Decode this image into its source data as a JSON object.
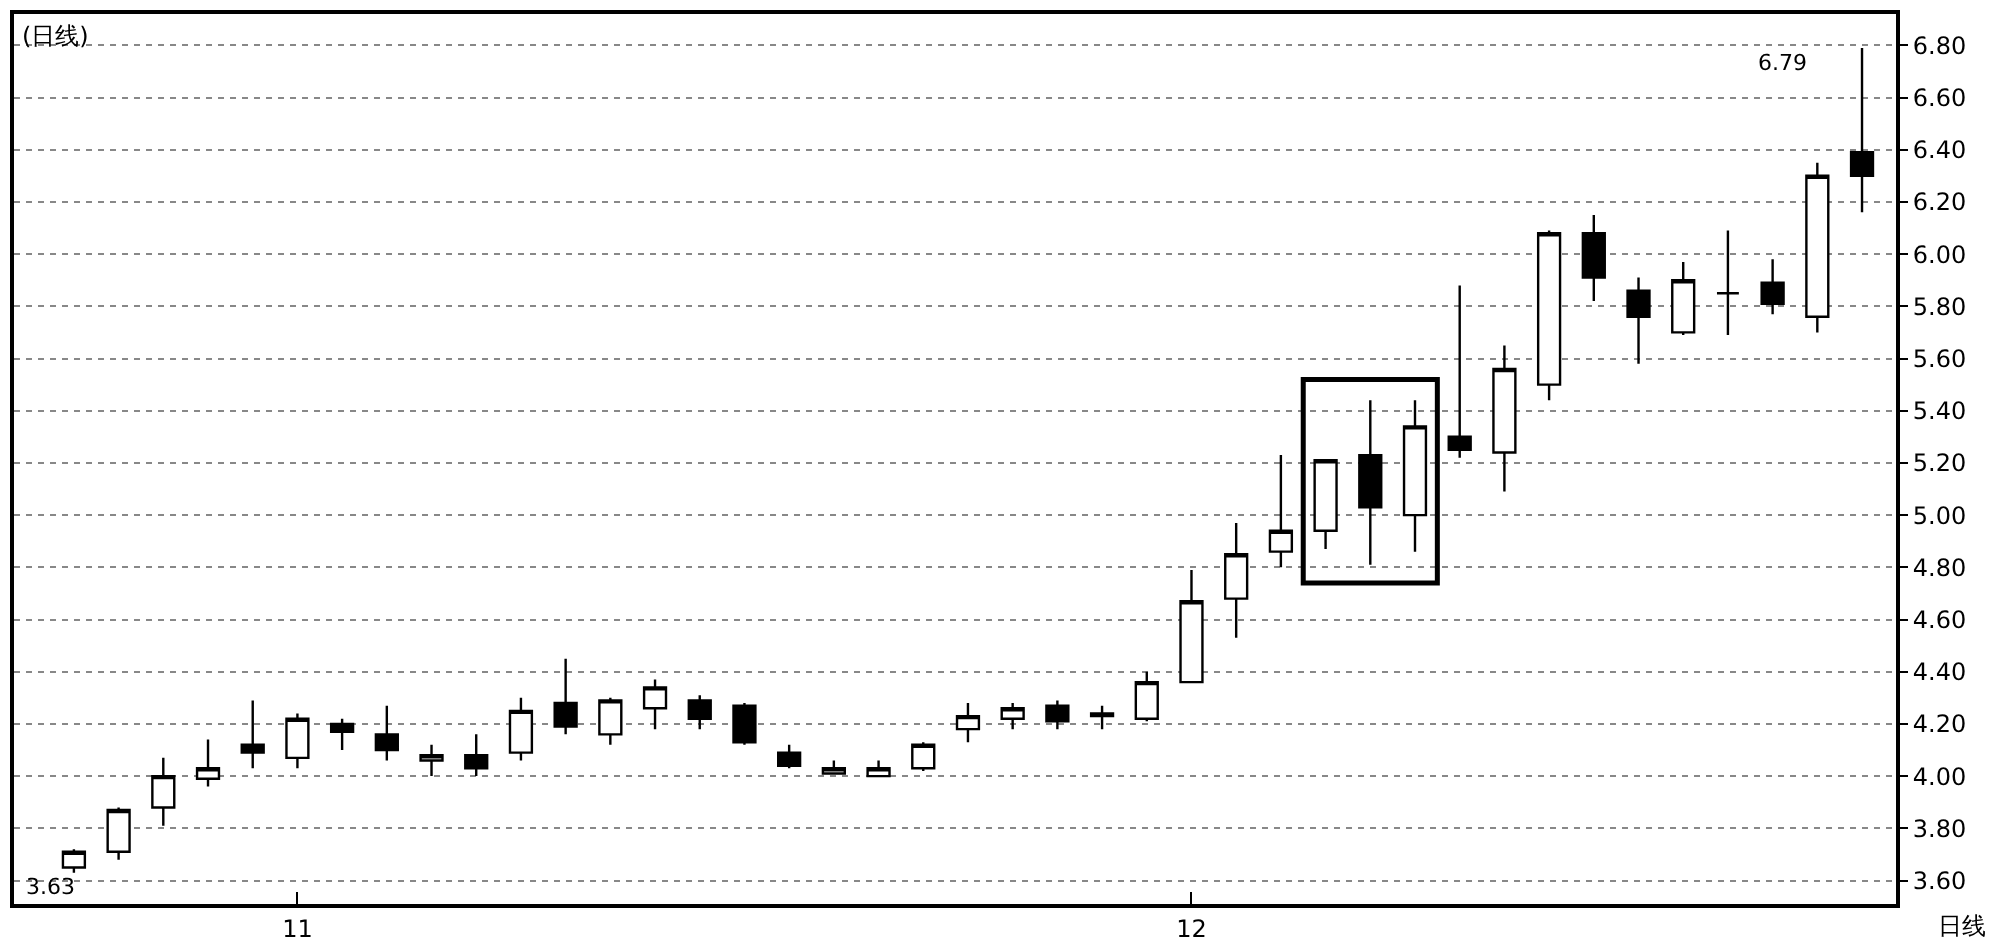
{
  "chart_data": {
    "type": "candlestick",
    "title": "(日线)",
    "categories": [
      null,
      null,
      null,
      null,
      null,
      "11",
      null,
      null,
      null,
      null,
      null,
      null,
      null,
      null,
      null,
      null,
      null,
      null,
      null,
      null,
      null,
      null,
      null,
      null,
      null,
      "12",
      null,
      null,
      null,
      null,
      null,
      null,
      null,
      null,
      null,
      null,
      null,
      null,
      null,
      null,
      null
    ],
    "ohlc": [
      [
        3.65,
        3.72,
        3.63,
        3.71
      ],
      [
        3.71,
        3.88,
        3.68,
        3.87
      ],
      [
        3.88,
        4.07,
        3.81,
        4.0
      ],
      [
        3.99,
        4.14,
        3.96,
        4.03
      ],
      [
        4.12,
        4.29,
        4.03,
        4.09
      ],
      [
        4.07,
        4.24,
        4.03,
        4.22
      ],
      [
        4.2,
        4.22,
        4.1,
        4.17
      ],
      [
        4.16,
        4.27,
        4.06,
        4.1
      ],
      [
        4.06,
        4.12,
        4.0,
        4.08
      ],
      [
        4.08,
        4.16,
        4.0,
        4.03
      ],
      [
        4.09,
        4.3,
        4.06,
        4.25
      ],
      [
        4.28,
        4.45,
        4.16,
        4.19
      ],
      [
        4.16,
        4.3,
        4.12,
        4.29
      ],
      [
        4.26,
        4.37,
        4.18,
        4.34
      ],
      [
        4.29,
        4.31,
        4.18,
        4.22
      ],
      [
        4.27,
        4.28,
        4.12,
        4.13
      ],
      [
        4.09,
        4.12,
        4.03,
        4.04
      ],
      [
        4.01,
        4.06,
        4.01,
        4.03
      ],
      [
        4.0,
        4.06,
        4.0,
        4.03
      ],
      [
        4.03,
        4.13,
        4.02,
        4.12
      ],
      [
        4.18,
        4.28,
        4.13,
        4.23
      ],
      [
        4.22,
        4.28,
        4.18,
        4.26
      ],
      [
        4.27,
        4.29,
        4.18,
        4.21
      ],
      [
        4.23,
        4.27,
        4.18,
        4.24
      ],
      [
        4.22,
        4.4,
        4.21,
        4.36
      ],
      [
        4.36,
        4.79,
        4.36,
        4.67
      ],
      [
        4.68,
        4.97,
        4.53,
        4.85
      ],
      [
        4.86,
        5.23,
        4.8,
        4.94
      ],
      [
        4.94,
        5.21,
        4.87,
        5.21
      ],
      [
        5.23,
        5.44,
        4.81,
        5.03
      ],
      [
        5.0,
        5.44,
        4.86,
        5.34
      ],
      [
        5.3,
        5.88,
        5.22,
        5.25
      ],
      [
        5.24,
        5.65,
        5.09,
        5.56
      ],
      [
        5.5,
        6.09,
        5.44,
        6.08
      ],
      [
        6.08,
        6.15,
        5.82,
        5.91
      ],
      [
        5.86,
        5.91,
        5.58,
        5.76
      ],
      [
        5.7,
        5.97,
        5.69,
        5.9
      ],
      [
        5.85,
        6.09,
        5.69,
        5.85
      ],
      [
        5.89,
        5.98,
        5.77,
        5.81
      ],
      [
        5.76,
        6.35,
        5.7,
        6.3
      ],
      [
        6.39,
        6.79,
        6.16,
        6.3
      ]
    ],
    "ylim": [
      3.51,
      6.92
    ],
    "yticks": [
      {
        "value": 3.6,
        "label": "3.60"
      },
      {
        "value": 3.8,
        "label": "3.80"
      },
      {
        "value": 4.0,
        "label": "4.00"
      },
      {
        "value": 4.2,
        "label": "4.20"
      },
      {
        "value": 4.4,
        "label": "4.40"
      },
      {
        "value": 4.6,
        "label": "4.60"
      },
      {
        "value": 4.8,
        "label": "4.80"
      },
      {
        "value": 5.0,
        "label": "5.00"
      },
      {
        "value": 5.2,
        "label": "5.20"
      },
      {
        "value": 5.4,
        "label": "5.40"
      },
      {
        "value": 5.6,
        "label": "5.60"
      },
      {
        "value": 5.8,
        "label": "5.80"
      },
      {
        "value": 6.0,
        "label": "6.00"
      },
      {
        "value": 6.2,
        "label": "6.20"
      },
      {
        "value": 6.4,
        "label": "6.40"
      },
      {
        "value": 6.6,
        "label": "6.60"
      },
      {
        "value": 6.8,
        "label": "6.80"
      }
    ],
    "grid": "y",
    "annotations": [
      "6.79",
      "3.63",
      "日线"
    ]
  }
}
